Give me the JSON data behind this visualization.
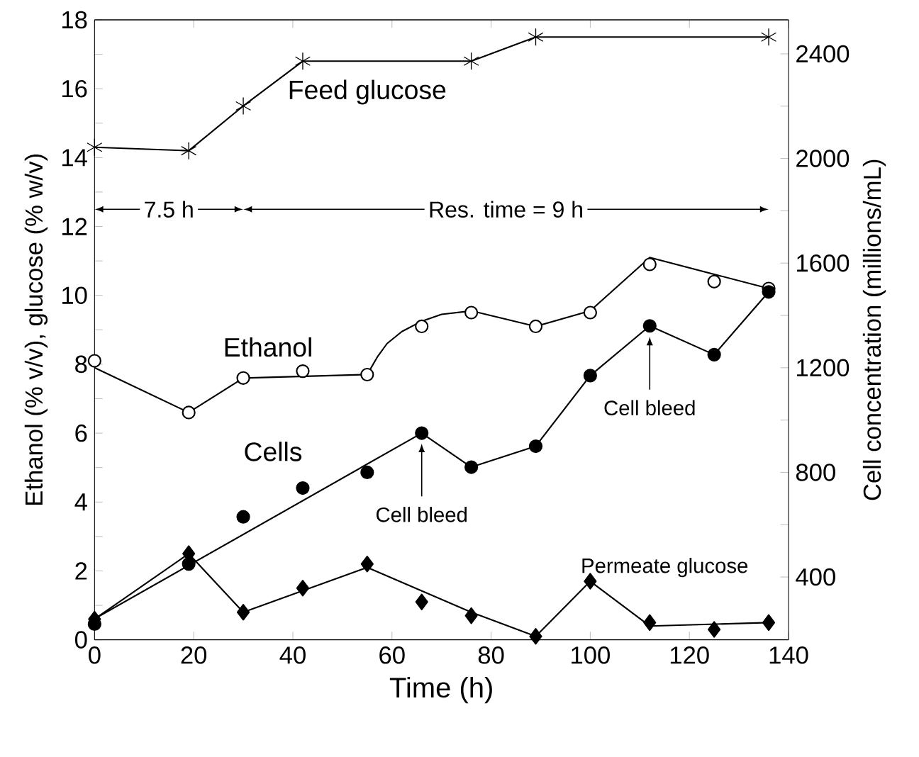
{
  "chart_data": {
    "type": "line",
    "xlabel": "Time (h)",
    "ylabel": "Ethanol (% v/v), glucose (% w/v)",
    "y2label": "Cell concentration (millions/mL)",
    "x": [
      0,
      19,
      30,
      42,
      55,
      66,
      76,
      89,
      100,
      112,
      125,
      136
    ],
    "xlim": [
      0,
      140
    ],
    "xticks": [
      0,
      20,
      40,
      60,
      80,
      100,
      120,
      140
    ],
    "ylim": [
      0,
      18
    ],
    "yticks": [
      0,
      {
        "value": 1,
        "label": null
      },
      2,
      {
        "value": 3,
        "label": null
      },
      4,
      {
        "value": 5,
        "label": null
      },
      6,
      {
        "value": 7,
        "label": null
      },
      8,
      {
        "value": 9,
        "label": null
      },
      10,
      {
        "value": 11,
        "label": null
      },
      12,
      {
        "value": 13,
        "label": null
      },
      14,
      {
        "value": 15,
        "label": null
      },
      16,
      {
        "value": 17,
        "label": null
      },
      18
    ],
    "y2lim": [
      160,
      2530
    ],
    "y2ticks": [
      400,
      {
        "value": 600,
        "label": null
      },
      800,
      {
        "value": 1000,
        "label": null
      },
      1200,
      {
        "value": 1400,
        "label": null
      },
      1600,
      {
        "value": 1800,
        "label": null
      },
      2000,
      {
        "value": 2200,
        "label": null
      },
      2400
    ],
    "series": [
      {
        "name": "Feed glucose",
        "marker": "cross",
        "color": "#000000",
        "x": [
          0,
          19,
          30,
          42,
          76,
          89,
          136
        ],
        "values": [
          14.3,
          14.2,
          15.5,
          16.8,
          16.8,
          17.5,
          17.5
        ]
      },
      {
        "name": "Ethanol",
        "type": "scatter",
        "marker": "circle",
        "color": "#ffffff",
        "values": [
          8.1,
          6.6,
          7.6,
          7.8,
          7.7,
          9.1,
          9.5,
          9.1,
          9.5,
          10.9,
          10.4,
          10.2
        ]
      },
      {
        "marker": "none",
        "color": "#000000",
        "x": [
          0,
          19,
          30,
          55,
          57,
          59,
          62,
          66,
          70,
          76,
          89,
          100,
          112,
          136
        ],
        "values": [
          7.9,
          6.6,
          7.6,
          7.7,
          8.2,
          8.6,
          8.95,
          9.25,
          9.45,
          9.55,
          9.1,
          9.55,
          11.1,
          10.2
        ]
      },
      {
        "name": "Cells",
        "type": "scatter",
        "marker": "circle",
        "axis": "y2",
        "color": "#000000",
        "values": [
          220,
          450,
          630,
          740,
          800,
          950,
          820,
          900,
          1170,
          1360,
          1250,
          1490
        ]
      },
      {
        "marker": "none",
        "axis": "y2",
        "color": "#000000",
        "x": [
          0,
          66,
          76,
          89,
          100,
          112,
          125,
          136
        ],
        "values": [
          240,
          950,
          820,
          900,
          1170,
          1360,
          1250,
          1490
        ]
      },
      {
        "name": "Permeate glucose",
        "type": "scatter",
        "marker": "diamond",
        "color": "#000000",
        "values": [
          0.6,
          2.5,
          0.8,
          1.5,
          2.2,
          1.1,
          0.7,
          0.1,
          1.7,
          0.5,
          0.3,
          0.5
        ]
      },
      {
        "marker": "none",
        "color": "#000000",
        "x": [
          0,
          19,
          30,
          55,
          76,
          89,
          100,
          112,
          136
        ],
        "values": [
          0.6,
          2.5,
          0.8,
          2.1,
          0.8,
          0.1,
          1.7,
          0.4,
          0.5
        ]
      }
    ],
    "annotations": [
      "7.5 h",
      "Res. time = 9 h",
      {
        "text": "Cell bleed",
        "x": 66,
        "y": 5.7
      },
      {
        "text": "Cell bleed",
        "x": 112,
        "y": 8.8
      }
    ]
  }
}
